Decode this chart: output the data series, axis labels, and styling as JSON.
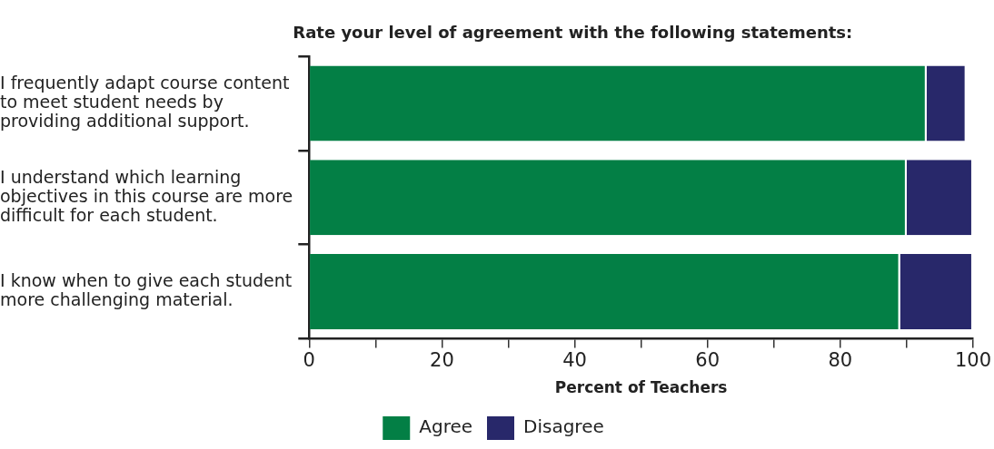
{
  "chart_data": {
    "type": "bar",
    "orientation": "horizontal",
    "stacked": true,
    "title": "Rate your level of agreement with the following statements:",
    "xlabel": "Percent of Teachers",
    "categories": [
      "I frequently adapt course content to meet student needs by providing additional support.",
      "I understand which learning objectives in this course are more difficult for each student.",
      "I know when to give each student more challenging material."
    ],
    "series": [
      {
        "name": "Agree",
        "color": "#037f45",
        "values": [
          93,
          90,
          89
        ]
      },
      {
        "name": "Disagree",
        "color": "#28286a",
        "values": [
          6,
          10,
          11
        ]
      }
    ],
    "xlim": [
      0,
      100
    ],
    "xticks": [
      0,
      {
        "value": 10,
        "label": null
      },
      20,
      {
        "value": 30,
        "label": null
      },
      40,
      {
        "value": 50,
        "label": null
      },
      60,
      {
        "value": 70,
        "label": null
      },
      80,
      {
        "value": 90,
        "label": null
      },
      100
    ],
    "grid": false,
    "legend": "bottom"
  }
}
